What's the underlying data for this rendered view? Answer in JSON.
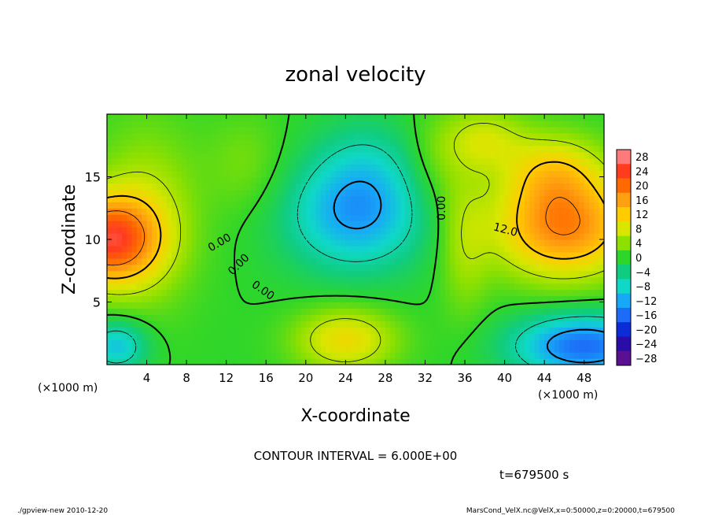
{
  "chart_data": {
    "type": "heatmap",
    "title": "zonal velocity",
    "xlabel": "X-coordinate",
    "ylabel": "Z-coordinate",
    "x_unit_label": "(×1000 m)",
    "y_unit_label": "(×1000 m)",
    "xlim": [
      0,
      50
    ],
    "ylim": [
      0,
      20
    ],
    "x_ticks": [
      "4",
      "8",
      "12",
      "16",
      "20",
      "24",
      "28",
      "32",
      "36",
      "40",
      "44",
      "48"
    ],
    "y_ticks": [
      "5",
      "10",
      "15"
    ],
    "colorbar": {
      "labels": [
        "28",
        "24",
        "20",
        "16",
        "12",
        "8",
        "4",
        "0",
        "−4",
        "−8",
        "−12",
        "−16",
        "−20",
        "−24",
        "−28"
      ],
      "colors": [
        "#ff7b7b",
        "#ff3c1e",
        "#ff6a00",
        "#ffa010",
        "#ffcc00",
        "#d8e600",
        "#8ee000",
        "#2ed62a",
        "#10cc80",
        "#10d8c8",
        "#18a8f8",
        "#1c6cf8",
        "#0c2cd8",
        "#2a0ca8",
        "#5a1090"
      ]
    },
    "contour_labels": [
      "0.00",
      "0.00",
      "0.00",
      "0.00",
      "12.0"
    ],
    "field": {
      "base": 0,
      "blobs": [
        {
          "x": 0,
          "z": 10,
          "sx": 5,
          "sz": 3.5,
          "amp": 22
        },
        {
          "x": 4,
          "z": 12,
          "sx": 5,
          "sz": 7,
          "amp": 6
        },
        {
          "x": 46,
          "z": 11,
          "sx": 7,
          "sz": 4,
          "amp": 18
        },
        {
          "x": 45,
          "z": 15.5,
          "sx": 5,
          "sz": 3,
          "amp": 9
        },
        {
          "x": 38,
          "z": 18,
          "sx": 4,
          "sz": 2.5,
          "amp": 7
        },
        {
          "x": 36,
          "z": 10,
          "sx": 2.5,
          "sz": 6,
          "amp": 5
        },
        {
          "x": 25,
          "z": 12,
          "sx": 7,
          "sz": 4.5,
          "amp": -12
        },
        {
          "x": 26,
          "z": 16,
          "sx": 5,
          "sz": 4,
          "amp": -4
        },
        {
          "x": 48,
          "z": 1.5,
          "sx": 7,
          "sz": 2.5,
          "amp": -16
        },
        {
          "x": 1,
          "z": 1.5,
          "sx": 3,
          "sz": 2,
          "amp": -10
        },
        {
          "x": 24,
          "z": 2,
          "sx": 5,
          "sz": 2.5,
          "amp": 10
        },
        {
          "x": 33,
          "z": 16,
          "sx": 3,
          "sz": 4,
          "amp": 3
        },
        {
          "x": 14,
          "z": 16,
          "sx": 4,
          "sz": 4,
          "amp": 3
        }
      ]
    }
  },
  "contour_interval_text": "CONTOUR INTERVAL = 6.000E+00",
  "time_text": "t=679500  s",
  "footer_left": "./gpview-new   2010-12-20",
  "footer_right": "MarsCond_VelX.nc@VelX,x=0:50000,z=0:20000,t=679500"
}
